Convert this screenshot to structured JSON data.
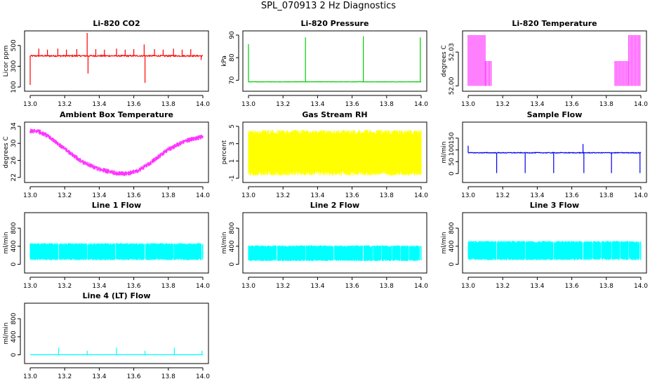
{
  "suptitle": "SPL_070913  2 Hz Diagnostics",
  "chart_data": [
    {
      "type": "line",
      "title": "Li-820 CO2",
      "ylabel": "Licor ppm",
      "color": "#ff0000",
      "xlim": [
        13.0,
        14.0
      ],
      "ylim": [
        100,
        600
      ],
      "xticks": [
        13.0,
        13.2,
        13.4,
        13.6,
        13.8,
        14.0
      ],
      "xtick_labels": [
        "13.0",
        "13.2",
        "13.4",
        "13.6",
        "13.8",
        "14.0"
      ],
      "yticks": [
        100,
        300,
        500
      ],
      "ytick_labels": [
        "100",
        "300",
        "500"
      ],
      "series": [
        {
          "name": "CO2",
          "style": "spiky",
          "base": 400,
          "noise": 12,
          "spikes": [
            [
              13.0,
              120
            ],
            [
              13.05,
              470
            ],
            [
              13.1,
              460
            ],
            [
              13.16,
              470
            ],
            [
              13.21,
              460
            ],
            [
              13.27,
              465
            ],
            [
              13.33,
              620
            ],
            [
              13.335,
              230
            ],
            [
              13.38,
              465
            ],
            [
              13.43,
              460
            ],
            [
              13.5,
              470
            ],
            [
              13.55,
              460
            ],
            [
              13.6,
              465
            ],
            [
              13.66,
              510
            ],
            [
              13.665,
              140
            ],
            [
              13.72,
              465
            ],
            [
              13.77,
              460
            ],
            [
              13.83,
              470
            ],
            [
              13.88,
              460
            ],
            [
              13.93,
              465
            ],
            [
              13.99,
              360
            ]
          ]
        }
      ]
    },
    {
      "type": "line",
      "title": "Li-820 Pressure",
      "ylabel": "kPa",
      "color": "#00cc00",
      "xlim": [
        13.0,
        14.0
      ],
      "ylim": [
        67,
        90
      ],
      "xticks": [
        13.0,
        13.2,
        13.4,
        13.6,
        13.8,
        14.0
      ],
      "xtick_labels": [
        "13.0",
        "13.2",
        "13.4",
        "13.6",
        "13.8",
        "14.0"
      ],
      "yticks": [
        70,
        80,
        90
      ],
      "ytick_labels": [
        "70",
        "80",
        "90"
      ],
      "series": [
        {
          "name": "Pressure",
          "style": "spiky",
          "base": 69.3,
          "noise": 0.15,
          "spikes": [
            [
              13.0,
              86
            ],
            [
              13.33,
              89
            ],
            [
              13.665,
              89.5
            ],
            [
              13.995,
              89
            ]
          ]
        }
      ]
    },
    {
      "type": "line",
      "title": "Li-820 Temperature",
      "ylabel": "degrees C",
      "color": "#ff00ff",
      "xlim": [
        13.0,
        14.0
      ],
      "ylim": [
        51.999,
        52.045
      ],
      "xticks": [
        13.0,
        13.2,
        13.4,
        13.6,
        13.8,
        14.0
      ],
      "xtick_labels": [
        "13.0",
        "13.2",
        "13.4",
        "13.6",
        "13.8",
        "14.0"
      ],
      "yticks": [
        52.0,
        52.03
      ],
      "ytick_labels": [
        "52.00",
        "52.03"
      ],
      "series": [
        {
          "name": "Temperature",
          "style": "step",
          "steps": [
            [
              13.0,
              52.045,
              52.0,
              13.1
            ],
            [
              13.1,
              52.022,
              52.0,
              13.14
            ],
            [
              13.14,
              52.0,
              52.0,
              13.85
            ],
            [
              13.85,
              52.022,
              52.0,
              13.93
            ],
            [
              13.93,
              52.045,
              52.0,
              14.0
            ]
          ]
        }
      ]
    },
    {
      "type": "line",
      "title": "Ambient Box Temperature",
      "ylabel": "degrees C",
      "color": "#ff33ff",
      "xlim": [
        13.0,
        14.0
      ],
      "ylim": [
        21.8,
        34
      ],
      "xticks": [
        13.0,
        13.2,
        13.4,
        13.6,
        13.8,
        14.0
      ],
      "xtick_labels": [
        "13.0",
        "13.2",
        "13.4",
        "13.6",
        "13.8",
        "14.0"
      ],
      "yticks": [
        22,
        26,
        30,
        34
      ],
      "ytick_labels": [
        "22",
        "26",
        "30",
        "34"
      ],
      "series": [
        {
          "name": "Box temp",
          "style": "curve",
          "noise": 0.6,
          "x": [
            13.0,
            13.05,
            13.1,
            13.2,
            13.3,
            13.4,
            13.5,
            13.56,
            13.62,
            13.7,
            13.8,
            13.9,
            14.0
          ],
          "y": [
            32.9,
            32.8,
            31.8,
            28.7,
            25.7,
            23.9,
            23.0,
            22.9,
            23.5,
            25.5,
            28.6,
            30.6,
            31.6
          ]
        }
      ]
    },
    {
      "type": "line",
      "title": "Gas Stream RH",
      "ylabel": "percent",
      "color": "#ffff00",
      "xlim": [
        13.0,
        14.0
      ],
      "ylim": [
        -1,
        5
      ],
      "xticks": [
        13.0,
        13.2,
        13.4,
        13.6,
        13.8,
        14.0
      ],
      "xtick_labels": [
        "13.0",
        "13.2",
        "13.4",
        "13.6",
        "13.8",
        "14.0"
      ],
      "yticks": [
        -1,
        1,
        3,
        5
      ],
      "ytick_labels": [
        "-1",
        "1",
        "3",
        "5"
      ],
      "series": [
        {
          "name": "RH",
          "style": "band",
          "low": -0.7,
          "high": 4.6
        }
      ]
    },
    {
      "type": "line",
      "title": "Sample Flow",
      "ylabel": "ml/min",
      "color": "#0000ee",
      "xlim": [
        13.0,
        14.0
      ],
      "ylim": [
        -20,
        200
      ],
      "xticks": [
        13.0,
        13.2,
        13.4,
        13.6,
        13.8,
        14.0
      ],
      "xtick_labels": [
        "13.0",
        "13.2",
        "13.4",
        "13.6",
        "13.8",
        "14.0"
      ],
      "yticks": [
        0,
        50,
        100,
        150
      ],
      "ytick_labels": [
        "0",
        "50",
        "100",
        "150"
      ],
      "series": [
        {
          "name": "Sample flow",
          "style": "spiky",
          "base": 88,
          "noise": 3,
          "spikes": [
            [
              13.0,
              118
            ],
            [
              13.165,
              2
            ],
            [
              13.33,
              2
            ],
            [
              13.495,
              2
            ],
            [
              13.665,
              125
            ],
            [
              13.67,
              2
            ],
            [
              13.83,
              2
            ],
            [
              13.995,
              2
            ]
          ]
        }
      ]
    },
    {
      "type": "line",
      "title": "Line 1 Flow",
      "ylabel": "ml/min",
      "color": "#00ffff",
      "xlim": [
        13.0,
        14.0
      ],
      "ylim": [
        -100,
        1050
      ],
      "xticks": [
        13.0,
        13.2,
        13.4,
        13.6,
        13.8,
        14.0
      ],
      "xtick_labels": [
        "13.0",
        "13.2",
        "13.4",
        "13.6",
        "13.8",
        "14.0"
      ],
      "yticks": [
        0,
        400,
        800
      ],
      "ytick_labels": [
        "0",
        "400",
        "800"
      ],
      "series": [
        {
          "name": "Line 1",
          "style": "band",
          "low": 90,
          "high": 470,
          "gaps": [
            13.165,
            13.33,
            13.495,
            13.665,
            13.83,
            13.995
          ]
        }
      ]
    },
    {
      "type": "line",
      "title": "Line 2 Flow",
      "ylabel": "ml/min",
      "color": "#00ffff",
      "xlim": [
        13.0,
        14.0
      ],
      "ylim": [
        -100,
        1050
      ],
      "xticks": [
        13.0,
        13.2,
        13.4,
        13.6,
        13.8,
        14.0
      ],
      "xtick_labels": [
        "13.0",
        "13.2",
        "13.4",
        "13.6",
        "13.8",
        "14.0"
      ],
      "yticks": [
        0,
        400,
        800
      ],
      "ytick_labels": [
        "0",
        "400",
        "800"
      ],
      "series": [
        {
          "name": "Line 2",
          "style": "band",
          "low": 70,
          "high": 420,
          "gaps": [
            13.165,
            13.33,
            13.495,
            13.665,
            13.72,
            13.77,
            13.83,
            13.88,
            13.93,
            13.995
          ]
        }
      ]
    },
    {
      "type": "line",
      "title": "Line 3 Flow",
      "ylabel": "ml/min",
      "color": "#00ffff",
      "xlim": [
        13.0,
        14.0
      ],
      "ylim": [
        -100,
        1050
      ],
      "xticks": [
        13.0,
        13.2,
        13.4,
        13.6,
        13.8,
        14.0
      ],
      "xtick_labels": [
        "13.0",
        "13.2",
        "13.4",
        "13.6",
        "13.8",
        "14.0"
      ],
      "yticks": [
        0,
        400,
        800
      ],
      "ytick_labels": [
        "0",
        "400",
        "800"
      ],
      "series": [
        {
          "name": "Line 3",
          "style": "band",
          "low": 90,
          "high": 520,
          "gaps": [
            13.165,
            13.33,
            13.495,
            13.665,
            13.72,
            13.77,
            13.83,
            13.88,
            13.93,
            13.995
          ]
        }
      ]
    },
    {
      "type": "line",
      "title": "Line 4 (LT) Flow",
      "ylabel": "ml/min",
      "color": "#00ffff",
      "xlim": [
        13.0,
        14.0
      ],
      "ylim": [
        -100,
        1050
      ],
      "xticks": [
        13.0,
        13.2,
        13.4,
        13.6,
        13.8,
        14.0
      ],
      "xtick_labels": [
        "13.0",
        "13.2",
        "13.4",
        "13.6",
        "13.8",
        "14.0"
      ],
      "yticks": [
        0,
        400,
        800
      ],
      "ytick_labels": [
        "0",
        "400",
        "800"
      ],
      "series": [
        {
          "name": "Line 4",
          "style": "spiky",
          "base": 2,
          "noise": 2,
          "spikes": [
            [
              13.165,
              160
            ],
            [
              13.33,
              90
            ],
            [
              13.5,
              160
            ],
            [
              13.665,
              90
            ],
            [
              13.835,
              160
            ],
            [
              13.995,
              90
            ]
          ]
        }
      ]
    }
  ]
}
